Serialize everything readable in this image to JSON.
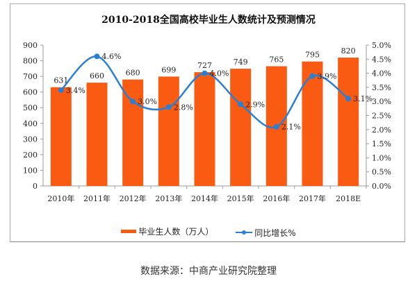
{
  "chart_data": {
    "type": "bar+line",
    "title": "2010-2018全国高校毕业生人数统计及预测情况",
    "categories": [
      "2010年",
      "2011年",
      "2012年",
      "2013年",
      "2014年",
      "2015年",
      "2016年",
      "2017年",
      "2018E"
    ],
    "series": [
      {
        "name": "毕业生人数（万人）",
        "type": "bar",
        "axis": "left",
        "values": [
          631,
          660,
          680,
          699,
          727,
          749,
          765,
          795,
          820
        ],
        "labels": [
          "631",
          "660",
          "680",
          "699",
          "727",
          "749",
          "765",
          "795",
          "820"
        ],
        "color": "#fa5b12"
      },
      {
        "name": "同比增长%",
        "type": "line",
        "axis": "right",
        "values": [
          3.4,
          4.6,
          3.0,
          2.8,
          4.0,
          2.9,
          2.1,
          3.9,
          3.1
        ],
        "labels": [
          "3.4%",
          "4.6%",
          "3.0%",
          "2.8%",
          "4.0%",
          "2.9%",
          "2.1%",
          "3.9%",
          "3.1%"
        ],
        "color": "#2a7fd2"
      }
    ],
    "left_axis": {
      "ylim": [
        0,
        900
      ],
      "ticks": [
        "0",
        "100",
        "200",
        "300",
        "400",
        "500",
        "600",
        "700",
        "800",
        "900"
      ]
    },
    "right_axis": {
      "ylim": [
        0,
        5
      ],
      "ticks": [
        "0.0%",
        "0.5%",
        "1.0%",
        "1.5%",
        "2.0%",
        "2.5%",
        "3.0%",
        "3.5%",
        "4.0%",
        "4.5%",
        "5.0%"
      ]
    },
    "grid": false,
    "legend": "bottom"
  },
  "source": "数据来源：中商产业研究院整理"
}
